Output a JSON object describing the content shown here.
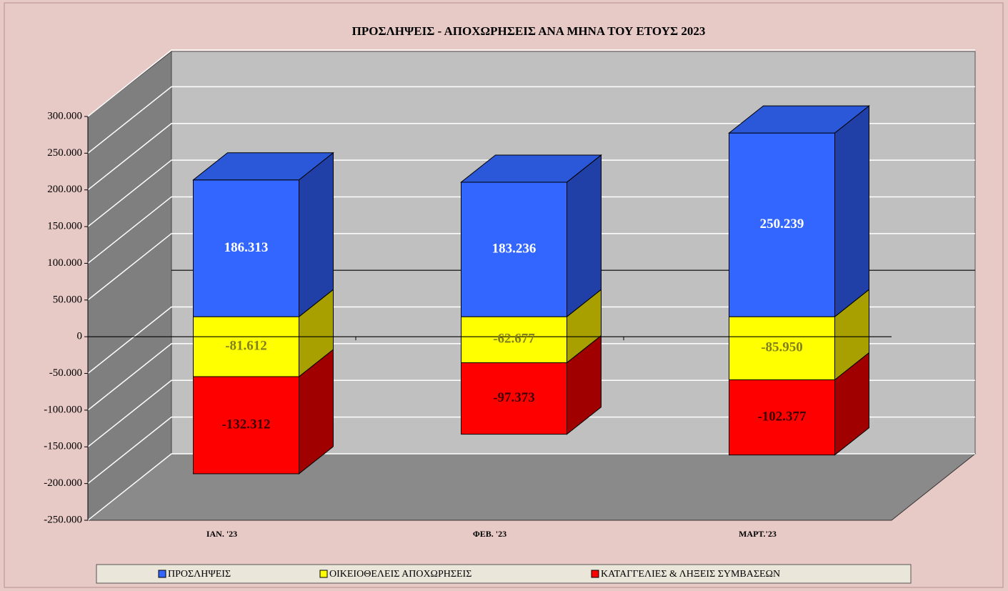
{
  "chart_data": {
    "type": "bar3d_stacked",
    "title": "ΠΡΟΣΛΗΨΕΙΣ - ΑΠΟΧΩΡΗΣΕΙΣ  ΑΝΑ ΜΗΝΑ ΤΟΥ  ΕΤΟΥΣ  2023",
    "categories": [
      "ΙΑΝ.  '23",
      "ΦΕΒ. '23",
      "ΜΑΡΤ.'23"
    ],
    "series": [
      {
        "name": "ΠΡΟΣΛΗΨΕΙΣ",
        "color": "#3366ff",
        "side": "#2040a8",
        "top": "#2a58d8",
        "label_color": "#ffffff",
        "values": [
          186313,
          183236,
          250239
        ],
        "value_labels": [
          "186.313",
          "183.236",
          "250.239"
        ]
      },
      {
        "name": "ΟΙΚΕΙΟΘΕΛΕΙΣ ΑΠΟΧΩΡΗΣΕΙΣ",
        "color": "#ffff00",
        "side": "#a8a000",
        "top": "#cccc00",
        "label_color": "#808020",
        "values": [
          -81612,
          -62677,
          -85950
        ],
        "value_labels": [
          "-81.612",
          "-62.677",
          "-85.950"
        ]
      },
      {
        "name": "ΚΑΤΑΓΓΕΛΙΕΣ & ΛΗΞΕΙΣ ΣΥΜΒΑΣΕΩΝ",
        "color": "#ff0000",
        "side": "#a00000",
        "top": "#c00000",
        "label_color": "#3a0000",
        "values": [
          -132312,
          -97373,
          -102377
        ],
        "value_labels": [
          "-132.312",
          "-97.373",
          "-102.377"
        ]
      }
    ],
    "ylim": [
      -250000,
      300000
    ],
    "yticks": [
      {
        "value": -250000,
        "label": "-250.000"
      },
      {
        "value": -200000,
        "label": "-200.000"
      },
      {
        "value": -150000,
        "label": "-150.000"
      },
      {
        "value": -100000,
        "label": "-100.000"
      },
      {
        "value": -50000,
        "label": "-50.000"
      },
      0,
      {
        "value": 50000,
        "label": "50.000"
      },
      {
        "value": 100000,
        "label": "100.000"
      },
      {
        "value": 150000,
        "label": "150.000"
      },
      {
        "value": 200000,
        "label": "200.000"
      },
      {
        "value": 250000,
        "label": "250.000"
      },
      {
        "value": 300000,
        "label": "300.000"
      }
    ],
    "grid": true,
    "legend": "bottom"
  }
}
